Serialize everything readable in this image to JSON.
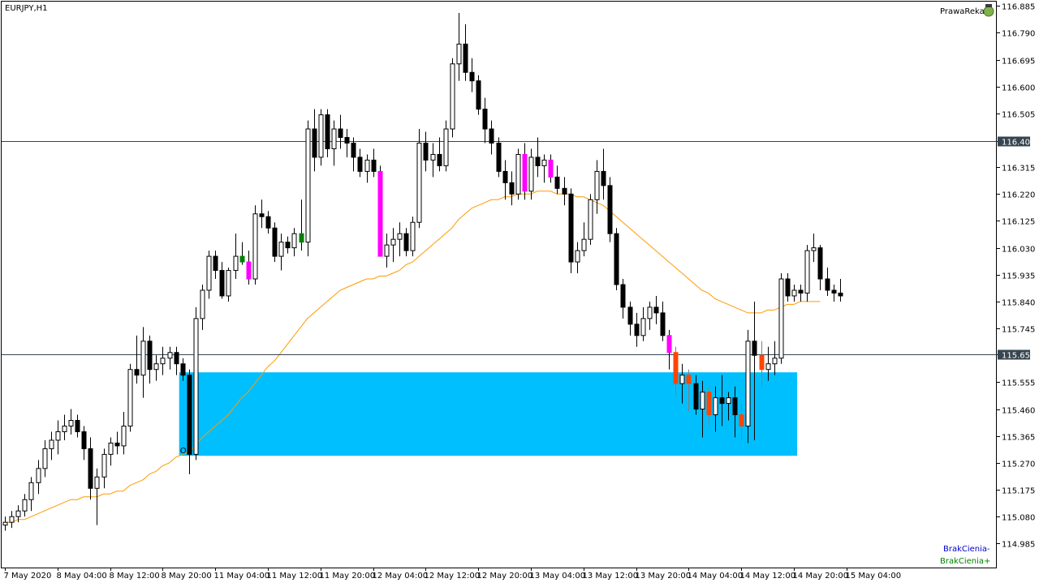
{
  "chart_data": {
    "type": "candlestick",
    "symbol_timeframe": "EURJPY,H1",
    "watermark_label": "PrawaReka",
    "indicator_labels": {
      "minus": "BrakCienia-",
      "plus": "BrakCienia+"
    },
    "ob_label": "OB",
    "ylim": [
      114.9,
      116.9
    ],
    "y_ticks": [
      "116.885",
      "116.790",
      "116.695",
      "116.600",
      "116.505",
      "116.406",
      "116.315",
      "116.220",
      "116.125",
      "116.030",
      "115.935",
      "115.840",
      "115.745",
      "115.655",
      "115.555",
      "115.460",
      "115.365",
      "115.270",
      "115.175",
      "115.080",
      "114.985"
    ],
    "y_tick_values": [
      116.885,
      116.79,
      116.695,
      116.6,
      116.505,
      116.406,
      116.315,
      116.22,
      116.125,
      116.03,
      115.935,
      115.84,
      115.745,
      115.655,
      115.555,
      115.46,
      115.365,
      115.27,
      115.175,
      115.08,
      114.985
    ],
    "x_ticks": [
      "7 May 2020",
      "8 May 04:00",
      "8 May 12:00",
      "8 May 20:00",
      "11 May 04:00",
      "11 May 12:00",
      "11 May 20:00",
      "12 May 04:00",
      "12 May 12:00",
      "12 May 20:00",
      "13 May 04:00",
      "13 May 12:00",
      "13 May 20:00",
      "14 May 04:00",
      "14 May 12:00",
      "14 May 20:00",
      "15 May 04:00"
    ],
    "horizontal_lines": [
      {
        "value": 116.406,
        "label": "116.406"
      },
      {
        "value": 115.655,
        "label": "115.655"
      }
    ],
    "order_block": {
      "x_start_bar": 27,
      "x_end_bar": 120,
      "y_high": 115.59,
      "y_low": 115.295,
      "color": "#00bfff"
    },
    "colors": {
      "bull": "#ffffff",
      "bear": "#000000",
      "ma": "#ff9900",
      "highlight_bull": "#008000",
      "highlight_bear": "#ff00ff",
      "ob_bear": "#ff4500",
      "price_label_bg": "#36454f"
    },
    "candles": [
      [
        115.05,
        115.08,
        115.03,
        115.06,
        ""
      ],
      [
        115.06,
        115.1,
        115.04,
        115.08,
        ""
      ],
      [
        115.08,
        115.12,
        115.06,
        115.1,
        ""
      ],
      [
        115.1,
        115.16,
        115.08,
        115.14,
        ""
      ],
      [
        115.14,
        115.22,
        115.1,
        115.2,
        ""
      ],
      [
        115.2,
        115.28,
        115.16,
        115.25,
        ""
      ],
      [
        115.25,
        115.35,
        115.22,
        115.32,
        ""
      ],
      [
        115.32,
        115.38,
        115.28,
        115.35,
        ""
      ],
      [
        115.35,
        115.42,
        115.3,
        115.38,
        ""
      ],
      [
        115.38,
        115.44,
        115.35,
        115.4,
        ""
      ],
      [
        115.4,
        115.46,
        115.37,
        115.42,
        ""
      ],
      [
        115.42,
        115.44,
        115.36,
        115.38,
        ""
      ],
      [
        115.38,
        115.4,
        115.28,
        115.32,
        ""
      ],
      [
        115.32,
        115.36,
        115.14,
        115.18,
        ""
      ],
      [
        115.18,
        115.25,
        115.05,
        115.22,
        ""
      ],
      [
        115.22,
        115.32,
        115.18,
        115.3,
        ""
      ],
      [
        115.3,
        115.36,
        115.26,
        115.34,
        ""
      ],
      [
        115.34,
        115.38,
        115.3,
        115.33,
        ""
      ],
      [
        115.33,
        115.45,
        115.3,
        115.4,
        ""
      ],
      [
        115.4,
        115.62,
        115.38,
        115.6,
        ""
      ],
      [
        115.6,
        115.72,
        115.55,
        115.58,
        ""
      ],
      [
        115.58,
        115.75,
        115.5,
        115.7,
        ""
      ],
      [
        115.7,
        115.72,
        115.55,
        115.6,
        ""
      ],
      [
        115.6,
        115.65,
        115.56,
        115.62,
        ""
      ],
      [
        115.62,
        115.68,
        115.58,
        115.64,
        ""
      ],
      [
        115.64,
        115.68,
        115.6,
        115.66,
        ""
      ],
      [
        115.66,
        115.68,
        115.58,
        115.62,
        ""
      ],
      [
        115.62,
        115.64,
        115.56,
        115.58,
        ""
      ],
      [
        115.58,
        115.6,
        115.23,
        115.3,
        ""
      ],
      [
        115.3,
        115.82,
        115.28,
        115.78,
        ""
      ],
      [
        115.78,
        115.9,
        115.74,
        115.88,
        ""
      ],
      [
        115.88,
        116.02,
        115.85,
        116.0,
        ""
      ],
      [
        116.0,
        116.02,
        115.92,
        115.95,
        ""
      ],
      [
        115.95,
        115.98,
        115.85,
        115.86,
        ""
      ],
      [
        115.86,
        115.96,
        115.84,
        115.95,
        ""
      ],
      [
        115.95,
        116.08,
        115.92,
        116.0,
        ""
      ],
      [
        116.0,
        116.05,
        115.97,
        115.98,
        "hb"
      ],
      [
        115.98,
        116.02,
        115.9,
        115.92,
        "hr"
      ],
      [
        115.92,
        116.18,
        115.9,
        116.15,
        ""
      ],
      [
        116.15,
        116.2,
        116.1,
        116.14,
        ""
      ],
      [
        116.14,
        116.16,
        116.08,
        116.1,
        ""
      ],
      [
        116.1,
        116.12,
        115.98,
        116.0,
        ""
      ],
      [
        116.0,
        116.08,
        115.95,
        116.05,
        ""
      ],
      [
        116.05,
        116.07,
        116.01,
        116.03,
        ""
      ],
      [
        116.03,
        116.1,
        116.0,
        116.08,
        ""
      ],
      [
        116.08,
        116.2,
        116.02,
        116.05,
        "hb"
      ],
      [
        116.05,
        116.48,
        116.0,
        116.45,
        ""
      ],
      [
        116.45,
        116.52,
        116.3,
        116.35,
        ""
      ],
      [
        116.35,
        116.52,
        116.32,
        116.5,
        ""
      ],
      [
        116.5,
        116.52,
        116.35,
        116.38,
        ""
      ],
      [
        116.38,
        116.48,
        116.32,
        116.45,
        ""
      ],
      [
        116.45,
        116.5,
        116.38,
        116.42,
        ""
      ],
      [
        116.42,
        116.45,
        116.35,
        116.4,
        ""
      ],
      [
        116.4,
        116.42,
        116.3,
        116.35,
        ""
      ],
      [
        116.35,
        116.38,
        116.28,
        116.3,
        ""
      ],
      [
        116.3,
        116.36,
        116.26,
        116.34,
        ""
      ],
      [
        116.34,
        116.38,
        116.28,
        116.3,
        ""
      ],
      [
        116.3,
        116.32,
        116.02,
        116.0,
        "hr"
      ],
      [
        116.0,
        116.08,
        115.96,
        116.04,
        ""
      ],
      [
        116.04,
        116.1,
        115.98,
        116.06,
        ""
      ],
      [
        116.06,
        116.12,
        116.0,
        116.08,
        ""
      ],
      [
        116.08,
        116.1,
        116.0,
        116.02,
        ""
      ],
      [
        116.02,
        116.14,
        116.0,
        116.12,
        ""
      ],
      [
        116.12,
        116.45,
        116.1,
        116.4,
        ""
      ],
      [
        116.4,
        116.44,
        116.3,
        116.34,
        ""
      ],
      [
        116.34,
        116.4,
        116.28,
        116.36,
        ""
      ],
      [
        116.36,
        116.42,
        116.3,
        116.32,
        ""
      ],
      [
        116.32,
        116.48,
        116.3,
        116.45,
        ""
      ],
      [
        116.45,
        116.7,
        116.42,
        116.68,
        ""
      ],
      [
        116.68,
        116.86,
        116.62,
        116.75,
        ""
      ],
      [
        116.75,
        116.82,
        116.62,
        116.65,
        ""
      ],
      [
        116.65,
        116.7,
        116.58,
        116.62,
        ""
      ],
      [
        116.62,
        116.64,
        116.5,
        116.52,
        ""
      ],
      [
        116.52,
        116.56,
        116.4,
        116.45,
        ""
      ],
      [
        116.45,
        116.48,
        116.36,
        116.4,
        ""
      ],
      [
        116.4,
        116.42,
        116.28,
        116.3,
        ""
      ],
      [
        116.3,
        116.34,
        116.2,
        116.26,
        ""
      ],
      [
        116.26,
        116.3,
        116.18,
        116.22,
        ""
      ],
      [
        116.22,
        116.38,
        116.2,
        116.36,
        ""
      ],
      [
        116.36,
        116.4,
        116.2,
        116.23,
        "hr"
      ],
      [
        116.23,
        116.38,
        116.2,
        116.35,
        ""
      ],
      [
        116.35,
        116.42,
        116.28,
        116.32,
        ""
      ],
      [
        116.32,
        116.36,
        116.26,
        116.34,
        ""
      ],
      [
        116.34,
        116.36,
        116.26,
        116.28,
        "hr"
      ],
      [
        116.28,
        116.32,
        116.22,
        116.24,
        ""
      ],
      [
        116.24,
        116.28,
        116.18,
        116.22,
        ""
      ],
      [
        116.22,
        116.24,
        115.94,
        115.98,
        ""
      ],
      [
        115.98,
        116.05,
        115.94,
        116.02,
        ""
      ],
      [
        116.02,
        116.12,
        116.0,
        116.06,
        ""
      ],
      [
        116.06,
        116.22,
        116.04,
        116.2,
        ""
      ],
      [
        116.2,
        116.34,
        116.15,
        116.3,
        ""
      ],
      [
        116.3,
        116.38,
        116.2,
        116.25,
        ""
      ],
      [
        116.25,
        116.28,
        116.05,
        116.08,
        ""
      ],
      [
        116.08,
        116.1,
        115.88,
        115.9,
        ""
      ],
      [
        115.9,
        115.92,
        115.78,
        115.82,
        ""
      ],
      [
        115.82,
        115.84,
        115.72,
        115.76,
        ""
      ],
      [
        115.76,
        115.8,
        115.68,
        115.72,
        ""
      ],
      [
        115.72,
        115.82,
        115.7,
        115.78,
        ""
      ],
      [
        115.78,
        115.84,
        115.74,
        115.82,
        ""
      ],
      [
        115.82,
        115.86,
        115.76,
        115.8,
        ""
      ],
      [
        115.8,
        115.84,
        115.7,
        115.72,
        ""
      ],
      [
        115.72,
        115.74,
        115.6,
        115.66,
        "hr"
      ],
      [
        115.66,
        115.68,
        115.5,
        115.55,
        "or"
      ],
      [
        115.55,
        115.62,
        115.48,
        115.58,
        ""
      ],
      [
        115.58,
        115.6,
        115.45,
        115.55,
        "or"
      ],
      [
        115.55,
        115.58,
        115.44,
        115.46,
        ""
      ],
      [
        115.46,
        115.56,
        115.36,
        115.52,
        ""
      ],
      [
        115.52,
        115.54,
        115.4,
        115.44,
        "or"
      ],
      [
        115.44,
        115.54,
        115.38,
        115.5,
        ""
      ],
      [
        115.5,
        115.58,
        115.4,
        115.48,
        ""
      ],
      [
        115.48,
        115.52,
        115.42,
        115.5,
        ""
      ],
      [
        115.5,
        115.54,
        115.36,
        115.44,
        ""
      ],
      [
        115.44,
        115.48,
        115.35,
        115.4,
        "or"
      ],
      [
        115.4,
        115.74,
        115.34,
        115.7,
        ""
      ],
      [
        115.7,
        115.84,
        115.35,
        115.65,
        ""
      ],
      [
        115.65,
        115.7,
        115.54,
        115.6,
        "or"
      ],
      [
        115.6,
        115.68,
        115.56,
        115.62,
        ""
      ],
      [
        115.62,
        115.7,
        115.58,
        115.64,
        ""
      ],
      [
        115.64,
        115.94,
        115.62,
        115.92,
        ""
      ],
      [
        115.92,
        115.94,
        115.84,
        115.86,
        ""
      ],
      [
        115.86,
        115.9,
        115.84,
        115.88,
        ""
      ],
      [
        115.88,
        115.9,
        115.84,
        115.87,
        ""
      ],
      [
        115.87,
        116.04,
        115.84,
        116.02,
        ""
      ],
      [
        116.02,
        116.08,
        115.98,
        116.03,
        ""
      ],
      [
        116.03,
        116.04,
        115.88,
        115.92,
        ""
      ],
      [
        115.92,
        115.96,
        115.86,
        115.88,
        ""
      ],
      [
        115.88,
        115.9,
        115.84,
        115.87,
        ""
      ],
      [
        115.87,
        115.92,
        115.84,
        115.86,
        ""
      ]
    ],
    "ma": [
      115.06,
      115.06,
      115.07,
      115.07,
      115.08,
      115.09,
      115.1,
      115.11,
      115.12,
      115.13,
      115.14,
      115.14,
      115.15,
      115.15,
      115.15,
      115.16,
      115.16,
      115.17,
      115.17,
      115.19,
      115.2,
      115.21,
      115.23,
      115.24,
      115.26,
      115.27,
      115.29,
      115.3,
      115.31,
      115.33,
      115.36,
      115.38,
      115.4,
      115.42,
      115.44,
      115.47,
      115.5,
      115.52,
      115.55,
      115.58,
      115.61,
      115.63,
      115.66,
      115.69,
      115.72,
      115.75,
      115.78,
      115.8,
      115.82,
      115.84,
      115.86,
      115.88,
      115.89,
      115.9,
      115.91,
      115.92,
      115.92,
      115.93,
      115.93,
      115.94,
      115.95,
      115.97,
      115.98,
      116.0,
      116.02,
      116.04,
      116.06,
      116.08,
      116.1,
      116.13,
      116.15,
      116.17,
      116.18,
      116.19,
      116.2,
      116.2,
      116.21,
      116.21,
      116.22,
      116.22,
      116.22,
      116.23,
      116.23,
      116.23,
      116.22,
      116.22,
      116.22,
      116.21,
      116.21,
      116.2,
      116.19,
      116.18,
      116.16,
      116.14,
      116.12,
      116.1,
      116.08,
      116.06,
      116.04,
      116.02,
      116.0,
      115.98,
      115.96,
      115.94,
      115.92,
      115.9,
      115.88,
      115.87,
      115.85,
      115.84,
      115.83,
      115.82,
      115.81,
      115.8,
      115.8,
      115.8,
      115.81,
      115.81,
      115.82,
      115.83,
      115.83,
      115.84,
      115.84,
      115.84,
      115.84
    ]
  }
}
